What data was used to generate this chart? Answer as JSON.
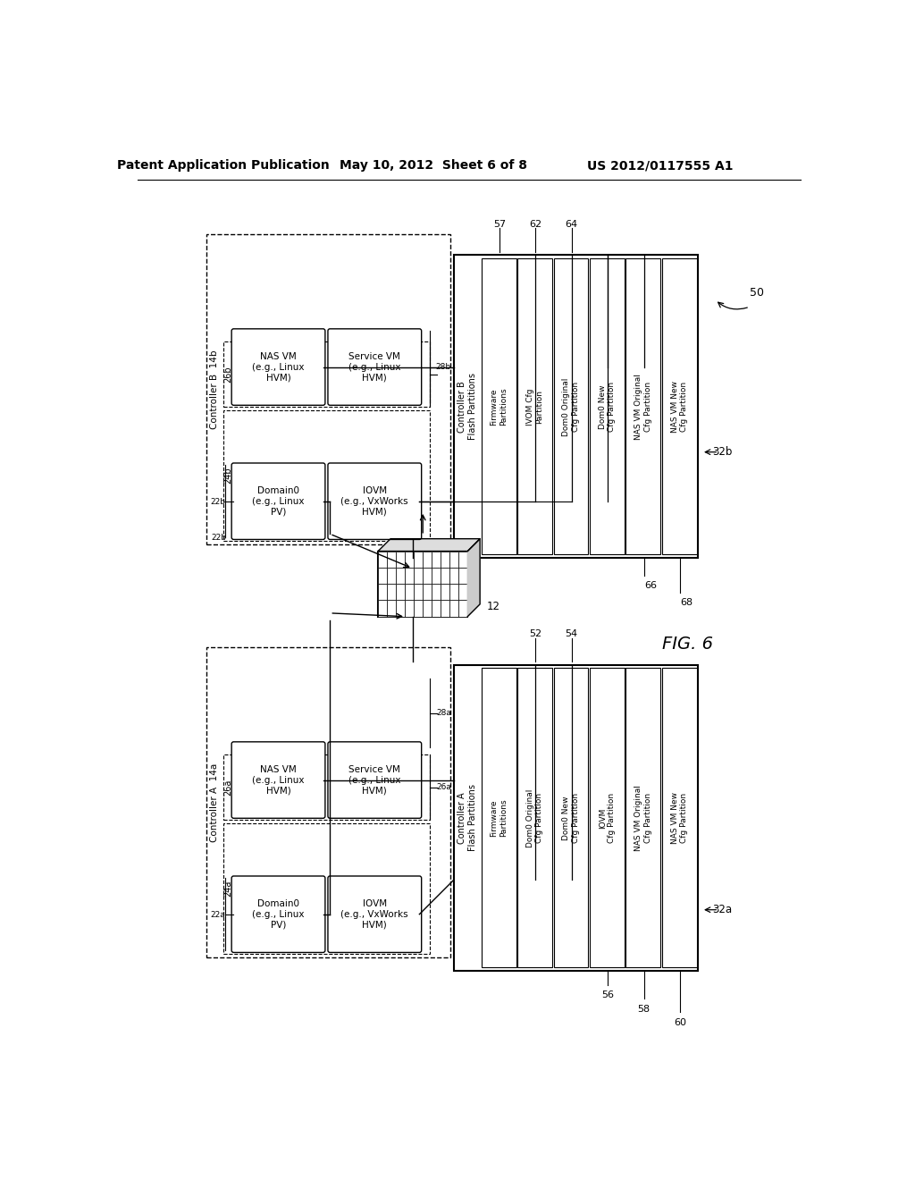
{
  "title_left": "Patent Application Publication",
  "title_mid": "May 10, 2012  Sheet 6 of 8",
  "title_right": "US 2012/0117555 A1",
  "fig_label": "FIG. 6",
  "background": "#ffffff",
  "flash_b_partitions": [
    "Firmware\nPartitions",
    "IVOM Cfg\nPartition",
    "Dom0 Original\nCfg Partition",
    "Dom0 New\nCfg Partition",
    "NAS VM Original\nCfg Partition",
    "NAS VM New\nCfg Partition"
  ],
  "flash_a_partitions": [
    "Firmware\nPartitions",
    "Dom0 Original\nCfg Partition",
    "Dom0 New\nCfg Partition",
    "IOVM\nCfg Partition",
    "NAS VM Original\nCfg Partition",
    "NAS VM New\nCfg Partition"
  ]
}
